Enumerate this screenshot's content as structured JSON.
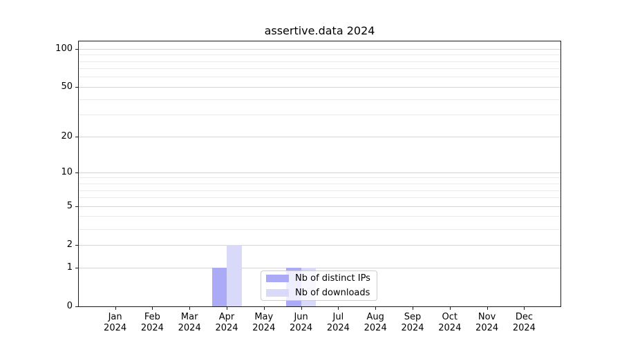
{
  "figure": {
    "title": "assertive.data 2024"
  },
  "legend": {
    "items": [
      {
        "label": "Nb of distinct IPs",
        "color": "#aaaaf7"
      },
      {
        "label": "Nb of downloads",
        "color": "#d9d9fa"
      }
    ]
  },
  "chart_data": {
    "type": "bar",
    "title": "assertive.data 2024",
    "categories": [
      "Jan",
      "Feb",
      "Mar",
      "Apr",
      "May",
      "Jun",
      "Jul",
      "Aug",
      "Sep",
      "Oct",
      "Nov",
      "Dec"
    ],
    "category_year": "2024",
    "series": [
      {
        "name": "Nb of distinct IPs",
        "color": "#aaaaf7",
        "values": [
          0,
          0,
          0,
          1,
          0,
          1,
          0,
          0,
          0,
          0,
          0,
          0
        ]
      },
      {
        "name": "Nb of downloads",
        "color": "#d9d9fa",
        "values": [
          0,
          0,
          0,
          2,
          0,
          1,
          0,
          0,
          0,
          0,
          0,
          0
        ]
      }
    ],
    "xlabel": "",
    "ylabel": "",
    "y_scale": "log10(1+v)",
    "y_ticks": [
      0,
      1,
      2,
      5,
      10,
      20,
      50,
      100
    ],
    "y_minor_gridlines": [
      3,
      4,
      6,
      7,
      8,
      9,
      30,
      40,
      60,
      70,
      80,
      90
    ],
    "ylim": [
      0,
      115
    ],
    "grid": true,
    "legend_position": "lower center",
    "style": {
      "major_grid_color": "#d4d4d4",
      "minor_grid_color": "#ebebeb",
      "spine_color": "#1a1a1a",
      "background": "#ffffff"
    }
  }
}
